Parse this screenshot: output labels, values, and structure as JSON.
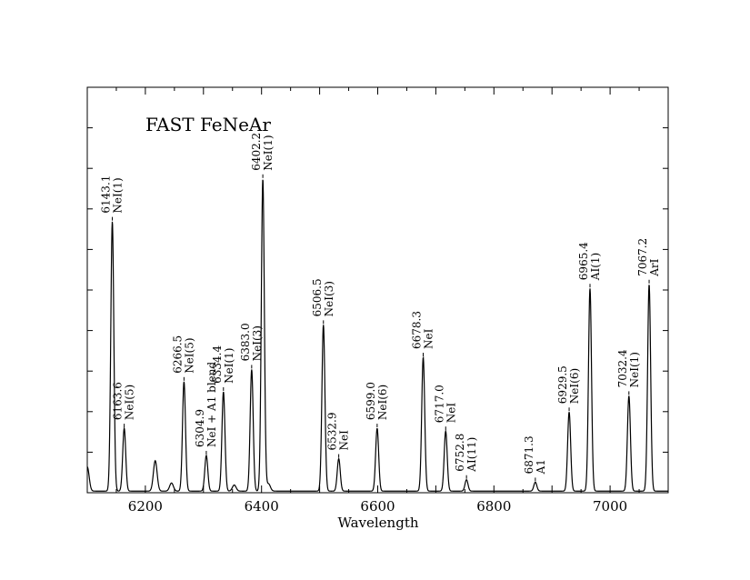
{
  "chart_data": {
    "type": "line",
    "title": "FAST FeNeAr",
    "xlabel": "Wavelength",
    "ylabel": "",
    "xlim": [
      6100,
      7100
    ],
    "ylim": [
      0,
      1
    ],
    "x_ticks": [
      6200,
      6400,
      6600,
      6800,
      7000
    ],
    "y_tick_count": 11,
    "y_tick_labels_shown": false,
    "grid": false,
    "line_color": "#000000",
    "lines": [
      {
        "x": 6143.1,
        "peak": 0.665,
        "label1": "6143.1",
        "label2": "NeI(1)"
      },
      {
        "x": 6163.6,
        "peak": 0.155,
        "label1": "6163.6",
        "label2": "NeI(5)"
      },
      {
        "x": 6266.5,
        "peak": 0.27,
        "label1": "6266.5",
        "label2": "NeI(5)"
      },
      {
        "x": 6304.9,
        "peak": 0.088,
        "label1": "6304.9",
        "label2": "NeI + A1 blend"
      },
      {
        "x": 6334.4,
        "peak": 0.245,
        "label1": "6334.4",
        "label2": "NeI(1)"
      },
      {
        "x": 6383.0,
        "peak": 0.3,
        "label1": "6383.0",
        "label2": "NeI(3)"
      },
      {
        "x": 6402.2,
        "peak": 0.77,
        "label1": "6402.2",
        "label2": "NeI(1)"
      },
      {
        "x": 6506.5,
        "peak": 0.41,
        "label1": "6506.5",
        "label2": "NeI(3)"
      },
      {
        "x": 6532.9,
        "peak": 0.08,
        "label1": "6532.9",
        "label2": "NeI"
      },
      {
        "x": 6599.0,
        "peak": 0.155,
        "label1": "6599.0",
        "label2": "NeI(6)"
      },
      {
        "x": 6678.3,
        "peak": 0.33,
        "label1": "6678.3",
        "label2": "NeI"
      },
      {
        "x": 6717.0,
        "peak": 0.148,
        "label1": "6717.0",
        "label2": "NeI"
      },
      {
        "x": 6752.8,
        "peak": 0.028,
        "label1": "6752.8",
        "label2": "AI(11)"
      },
      {
        "x": 6871.3,
        "peak": 0.022,
        "label1": "6871.3",
        "label2": "A1"
      },
      {
        "x": 6929.5,
        "peak": 0.195,
        "label1": "6929.5",
        "label2": "NeI(6)"
      },
      {
        "x": 6965.4,
        "peak": 0.5,
        "label1": "6965.4",
        "label2": "AI(1)"
      },
      {
        "x": 7032.4,
        "peak": 0.235,
        "label1": "7032.4",
        "label2": "NeI(1)"
      },
      {
        "x": 7067.2,
        "peak": 0.51,
        "label1": "7067.2",
        "label2": "ArI"
      }
    ],
    "unlabeled_features": [
      {
        "x": 6100.0,
        "peak": 0.06
      },
      {
        "x": 6217.0,
        "peak": 0.075
      },
      {
        "x": 6245.0,
        "peak": 0.02
      },
      {
        "x": 6353.0,
        "peak": 0.015
      },
      {
        "x": 6412.0,
        "peak": 0.018
      }
    ]
  }
}
